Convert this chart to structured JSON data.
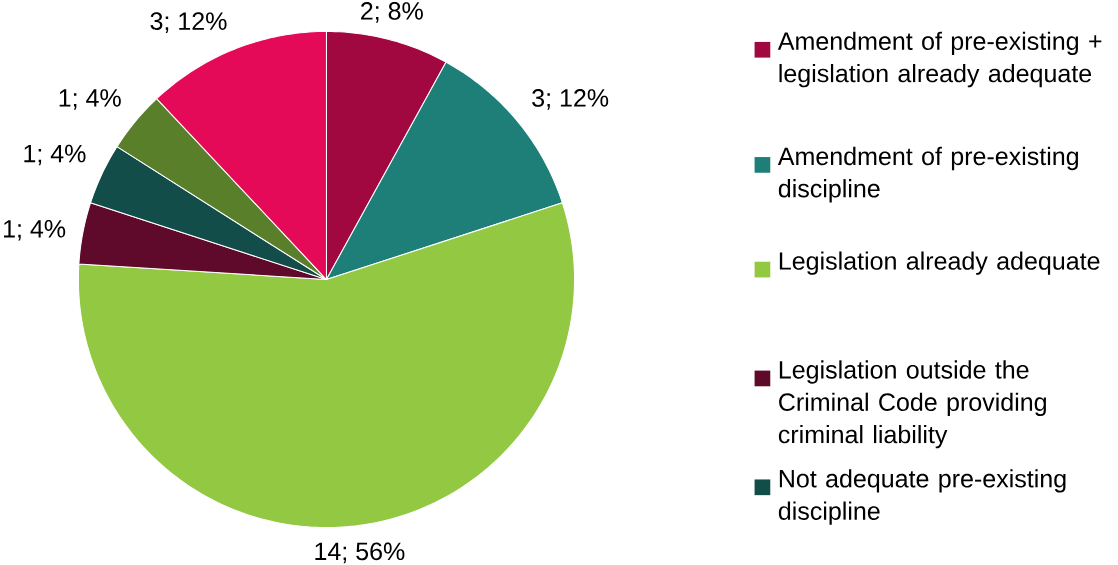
{
  "chart_data": {
    "type": "pie",
    "categories": [
      "Amendment of pre-existing + legislation already adequate",
      "Amendment of pre-existing discipline",
      "Legislation already adequate",
      "Legislation outside the Criminal Code providing criminal liability",
      "Not adequate pre-existing discipline",
      null,
      null
    ],
    "values": [
      2,
      3,
      14,
      1,
      1,
      1,
      3
    ],
    "value_labels": [
      "2; 8%",
      "3; 12%",
      "14; 56%",
      "1; 4%",
      "1; 4%",
      "1; 4%",
      "3; 12%"
    ],
    "colors": [
      "#a1083f",
      "#1e7f78",
      "#93c843",
      "#5f0a2a",
      "#124d4a",
      "#5a7f2b",
      "#e50a57"
    ],
    "legend": "right"
  }
}
